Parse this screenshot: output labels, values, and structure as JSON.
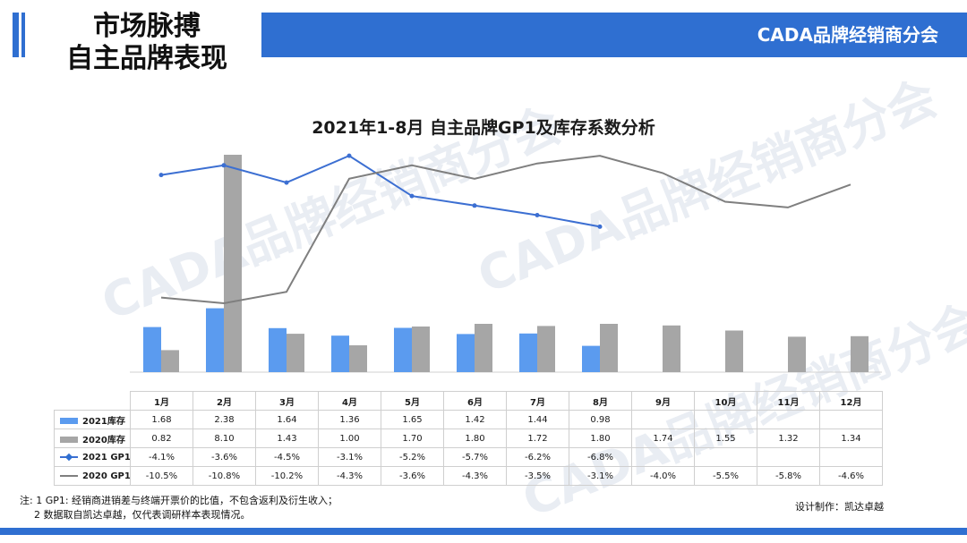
{
  "header": {
    "title_line1": "市场脉搏",
    "title_line2": "自主品牌表现",
    "org": "CADA品牌经销商分会",
    "watermark": "CADA品牌经销商分会"
  },
  "footer": {
    "note1": "注: 1 GP1: 经销商进销差与终端开票价的比值，不包含返利及衍生收入；",
    "note2": "2 数据取自凯达卓越，仅代表调研样本表现情况。",
    "credit": "设计制作：凯达卓越"
  },
  "colors": {
    "brand": "#2f6fd1",
    "bar_2021": "#5b9bef",
    "bar_2020": "#a6a6a6",
    "line_2021": "#3c6fd2",
    "line_2020": "#7f7f7f"
  },
  "chart_data": {
    "type": "bar",
    "title": "2021年1-8月 自主品牌GP1及库存系数分析",
    "categories": [
      "1月",
      "2月",
      "3月",
      "4月",
      "5月",
      "6月",
      "7月",
      "8月",
      "9月",
      "10月",
      "11月",
      "12月"
    ],
    "bar_series": [
      {
        "name": "2021库存",
        "values": [
          1.68,
          2.38,
          1.64,
          1.36,
          1.65,
          1.42,
          1.44,
          0.98,
          null,
          null,
          null,
          null
        ]
      },
      {
        "name": "2020库存",
        "values": [
          0.82,
          8.1,
          1.43,
          1.0,
          1.7,
          1.8,
          1.72,
          1.8,
          1.74,
          1.55,
          1.32,
          1.34
        ]
      }
    ],
    "line_series": [
      {
        "name": "2021 GP1",
        "values": [
          -4.1,
          -3.6,
          -4.5,
          -3.1,
          -5.2,
          -5.7,
          -6.2,
          -6.8,
          null,
          null,
          null,
          null
        ]
      },
      {
        "name": "2020 GP1",
        "values": [
          -10.5,
          -10.8,
          -10.2,
          -4.3,
          -3.6,
          -4.3,
          -3.5,
          -3.1,
          -4.0,
          -5.5,
          -5.8,
          -4.6
        ]
      }
    ],
    "table_rows": [
      {
        "label": "2021库存",
        "cells": [
          "1.68",
          "2.38",
          "1.64",
          "1.36",
          "1.65",
          "1.42",
          "1.44",
          "0.98",
          "",
          "",
          "",
          ""
        ]
      },
      {
        "label": "2020库存",
        "cells": [
          "0.82",
          "8.10",
          "1.43",
          "1.00",
          "1.70",
          "1.80",
          "1.72",
          "1.80",
          "1.74",
          "1.55",
          "1.32",
          "1.34"
        ]
      },
      {
        "label": "2021 GP1",
        "cells": [
          "-4.1%",
          "-3.6%",
          "-4.5%",
          "-3.1%",
          "-5.2%",
          "-5.7%",
          "-6.2%",
          "-6.8%",
          "",
          "",
          "",
          ""
        ]
      },
      {
        "label": "2020 GP1",
        "cells": [
          "-10.5%",
          "-10.8%",
          "-10.2%",
          "-4.3%",
          "-3.6%",
          "-4.3%",
          "-3.5%",
          "-3.1%",
          "-4.0%",
          "-5.5%",
          "-5.8%",
          "-4.6%"
        ]
      }
    ],
    "ylabel": "",
    "grid": false
  }
}
